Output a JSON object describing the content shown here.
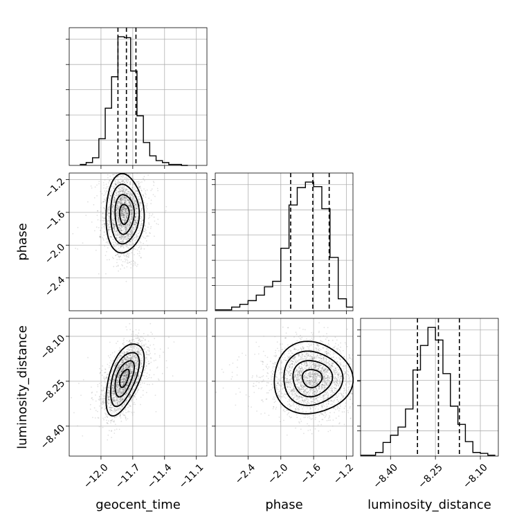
{
  "chart_data": {
    "type": "corner",
    "grid": true,
    "parameters": [
      {
        "name": "geocent_time",
        "label": "geocent_time",
        "range": [
          -12.3,
          -11.0
        ],
        "ticks": [
          -12.0,
          -11.7,
          -11.4,
          -11.1
        ],
        "tick_labels": [
          "−12.0",
          "−11.7",
          "−11.4",
          "−11.1"
        ],
        "quantiles": [
          -11.84,
          -11.76,
          -11.67
        ]
      },
      {
        "name": "phase",
        "label": "phase",
        "range": [
          -2.8,
          -1.12
        ],
        "ticks": [
          -2.4,
          -2.0,
          -1.6,
          -1.2
        ],
        "tick_labels": [
          "−2.4",
          "−2.0",
          "−1.6",
          "−1.2"
        ],
        "quantiles": [
          -1.88,
          -1.61,
          -1.41
        ]
      },
      {
        "name": "luminosity_distance",
        "label": "luminosity_distance",
        "range": [
          -8.5,
          -8.04
        ],
        "ticks": [
          -8.4,
          -8.25,
          -8.1
        ],
        "tick_labels": [
          "−8.40",
          "−8.25",
          "−8.10"
        ],
        "quantiles": [
          -8.31,
          -8.24,
          -8.17
        ]
      }
    ],
    "histograms": [
      {
        "parameter": "geocent_time",
        "bin_edges": [
          -12.2,
          -12.14,
          -12.08,
          -12.02,
          -11.96,
          -11.9,
          -11.84,
          -11.78,
          -11.72,
          -11.66,
          -11.6,
          -11.54,
          -11.48,
          -11.42,
          -11.36,
          -11.3,
          -11.24,
          -11.18
        ],
        "counts": [
          1,
          3,
          8,
          28,
          60,
          93,
          135,
          134,
          99,
          52,
          24,
          10,
          5,
          3,
          1,
          1,
          0
        ]
      },
      {
        "parameter": "phase",
        "bin_edges": [
          -2.8,
          -2.7,
          -2.6,
          -2.5,
          -2.4,
          -2.3,
          -2.2,
          -2.1,
          -2.0,
          -1.9,
          -1.8,
          -1.7,
          -1.6,
          -1.5,
          -1.4,
          -1.3,
          -1.2,
          -1.12
        ],
        "counts": [
          1,
          1,
          4,
          7,
          11,
          17,
          26,
          32,
          68,
          115,
          134,
          140,
          135,
          111,
          58,
          13,
          4
        ]
      },
      {
        "parameter": "luminosity_distance",
        "bin_edges": [
          -8.5,
          -8.475,
          -8.45,
          -8.425,
          -8.4,
          -8.375,
          -8.35,
          -8.325,
          -8.3,
          -8.275,
          -8.25,
          -8.225,
          -8.2,
          -8.175,
          -8.15,
          -8.125,
          -8.1,
          -8.075,
          -8.05
        ],
        "counts": [
          1,
          1,
          4,
          15,
          23,
          32,
          52,
          95,
          122,
          142,
          128,
          91,
          55,
          35,
          16,
          4,
          3,
          1
        ]
      }
    ],
    "pairs": [
      {
        "x": "geocent_time",
        "y": "phase",
        "center": [
          -11.78,
          -1.62
        ],
        "sigma": [
          0.09,
          0.24
        ],
        "correlation": 0.0
      },
      {
        "x": "geocent_time",
        "y": "luminosity_distance",
        "center": [
          -11.78,
          -8.24
        ],
        "sigma": [
          0.09,
          0.06
        ],
        "correlation": 0.55
      },
      {
        "x": "phase",
        "y": "luminosity_distance",
        "center": [
          -1.62,
          -8.24
        ],
        "sigma": [
          0.24,
          0.06
        ],
        "correlation": 0.0
      }
    ]
  }
}
